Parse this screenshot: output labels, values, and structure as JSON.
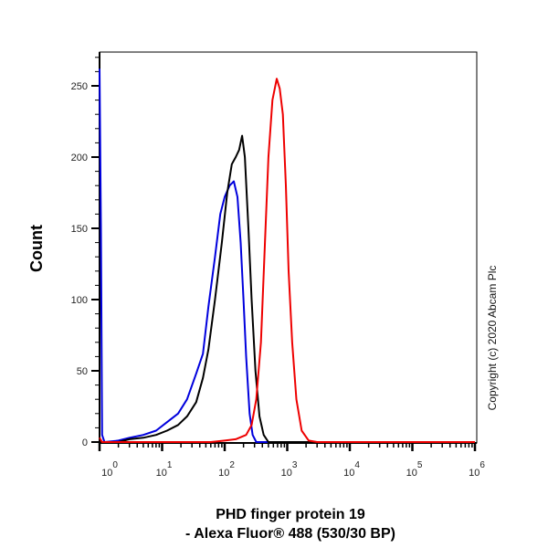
{
  "chart_data": {
    "type": "line",
    "title": "",
    "xlabel_line1": "PHD finger protein 19",
    "xlabel_line2": "- Alexa Fluor® 488 (530/30 BP)",
    "ylabel": "Count",
    "xscale": "log",
    "xlim": [
      1,
      1000000
    ],
    "ylim": [
      0,
      270
    ],
    "yticks": [
      0,
      50,
      100,
      150,
      200,
      250
    ],
    "xticks": [
      {
        "base": "10",
        "exp": "0",
        "value": 1
      },
      {
        "base": "10",
        "exp": "1",
        "value": 10
      },
      {
        "base": "10",
        "exp": "2",
        "value": 100
      },
      {
        "base": "10",
        "exp": "3",
        "value": 1000
      },
      {
        "base": "10",
        "exp": "4",
        "value": 10000
      },
      {
        "base": "10",
        "exp": "5",
        "value": 100000
      },
      {
        "base": "10",
        "exp": "6",
        "value": 1000000
      }
    ],
    "copyright": "Copyright (c) 2020 Abcam Plc",
    "series": [
      {
        "color": "#0000dd",
        "points": [
          [
            1,
            262
          ],
          [
            1.05,
            150
          ],
          [
            1.1,
            5
          ],
          [
            1.2,
            0
          ],
          [
            2,
            1
          ],
          [
            3,
            3
          ],
          [
            5,
            5
          ],
          [
            8,
            8
          ],
          [
            12,
            14
          ],
          [
            18,
            20
          ],
          [
            25,
            30
          ],
          [
            35,
            48
          ],
          [
            45,
            62
          ],
          [
            55,
            95
          ],
          [
            70,
            130
          ],
          [
            85,
            160
          ],
          [
            100,
            172
          ],
          [
            120,
            180
          ],
          [
            140,
            183
          ],
          [
            160,
            172
          ],
          [
            180,
            140
          ],
          [
            200,
            100
          ],
          [
            220,
            60
          ],
          [
            250,
            20
          ],
          [
            280,
            5
          ],
          [
            320,
            0
          ],
          [
            1000000,
            0
          ]
        ]
      },
      {
        "color": "#000000",
        "points": [
          [
            1,
            0
          ],
          [
            2,
            0
          ],
          [
            3,
            2
          ],
          [
            5,
            3
          ],
          [
            8,
            5
          ],
          [
            12,
            8
          ],
          [
            18,
            12
          ],
          [
            25,
            18
          ],
          [
            35,
            28
          ],
          [
            45,
            45
          ],
          [
            55,
            65
          ],
          [
            70,
            100
          ],
          [
            90,
            140
          ],
          [
            110,
            175
          ],
          [
            130,
            195
          ],
          [
            150,
            200
          ],
          [
            170,
            205
          ],
          [
            190,
            215
          ],
          [
            210,
            200
          ],
          [
            240,
            150
          ],
          [
            270,
            100
          ],
          [
            310,
            50
          ],
          [
            360,
            18
          ],
          [
            420,
            5
          ],
          [
            500,
            0
          ],
          [
            1000000,
            0
          ]
        ]
      },
      {
        "color": "#ee0000",
        "points": [
          [
            1,
            3
          ],
          [
            1.1,
            0
          ],
          [
            60,
            0
          ],
          [
            100,
            1
          ],
          [
            150,
            2
          ],
          [
            220,
            5
          ],
          [
            270,
            12
          ],
          [
            320,
            30
          ],
          [
            380,
            70
          ],
          [
            440,
            140
          ],
          [
            500,
            200
          ],
          [
            580,
            240
          ],
          [
            680,
            255
          ],
          [
            760,
            248
          ],
          [
            850,
            230
          ],
          [
            950,
            180
          ],
          [
            1050,
            120
          ],
          [
            1200,
            70
          ],
          [
            1400,
            30
          ],
          [
            1700,
            8
          ],
          [
            2200,
            1
          ],
          [
            3000,
            0
          ],
          [
            1000000,
            0
          ]
        ]
      }
    ]
  }
}
